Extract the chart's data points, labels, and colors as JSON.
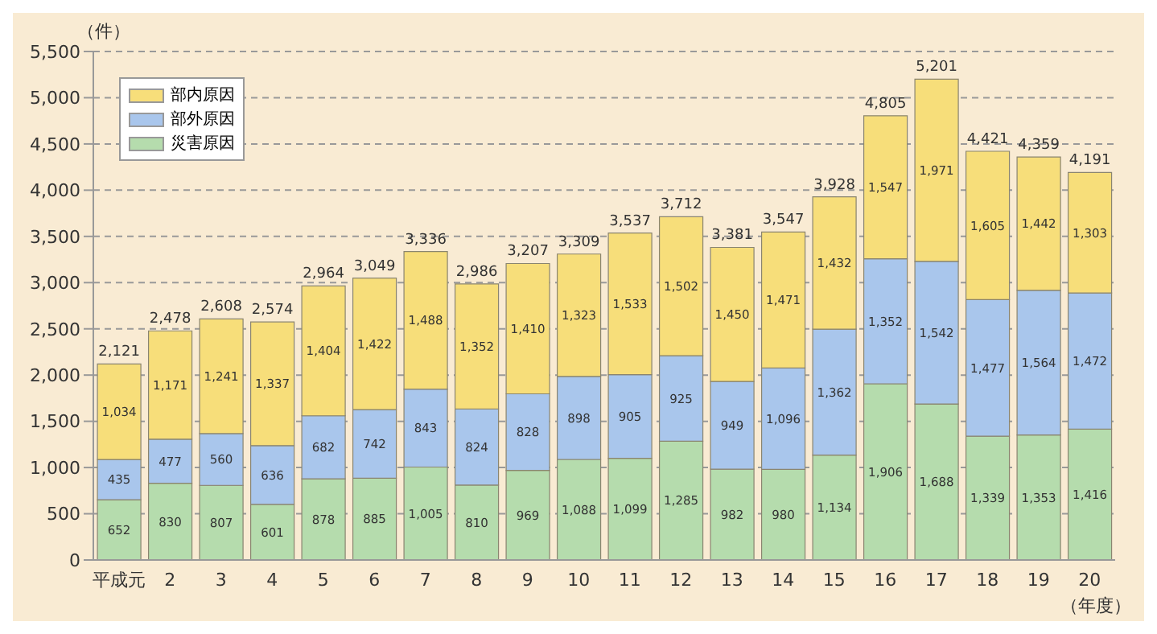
{
  "chart_data": {
    "type": "bar",
    "stacked": true,
    "ylabel": "（件）",
    "xlabel": "（年度）",
    "categories": [
      "平成元",
      "2",
      "3",
      "4",
      "5",
      "6",
      "7",
      "8",
      "9",
      "10",
      "11",
      "12",
      "13",
      "14",
      "15",
      "16",
      "17",
      "18",
      "19",
      "20"
    ],
    "series": [
      {
        "name": "災害原因",
        "color": "#b5dcad",
        "values": [
          652,
          830,
          807,
          601,
          878,
          885,
          1005,
          810,
          969,
          1088,
          1099,
          1285,
          982,
          980,
          1134,
          1906,
          1688,
          1339,
          1353,
          1416
        ],
        "value_labels": [
          "652",
          "830",
          "807",
          "601",
          "878",
          "885",
          "1,005",
          "810",
          "969",
          "1,088",
          "1,099",
          "1,285",
          "982",
          "980",
          "1,134",
          "1,906",
          "1,688",
          "1,339",
          "1,353",
          "1,416"
        ]
      },
      {
        "name": "部外原因",
        "color": "#a9c6ec",
        "values": [
          435,
          477,
          560,
          636,
          682,
          742,
          843,
          824,
          828,
          898,
          905,
          925,
          949,
          1096,
          1362,
          1352,
          1542,
          1477,
          1564,
          1472
        ],
        "value_labels": [
          "435",
          "477",
          "560",
          "636",
          "682",
          "742",
          "843",
          "824",
          "828",
          "898",
          "905",
          "925",
          "949",
          "1,096",
          "1,362",
          "1,352",
          "1,542",
          "1,477",
          "1,564",
          "1,472"
        ]
      },
      {
        "name": "部内原因",
        "color": "#f7de7a",
        "values": [
          1034,
          1171,
          1241,
          1337,
          1404,
          1422,
          1488,
          1352,
          1410,
          1323,
          1533,
          1502,
          1450,
          1471,
          1432,
          1547,
          1971,
          1605,
          1442,
          1303
        ],
        "value_labels": [
          "1,034",
          "1,171",
          "1,241",
          "1,337",
          "1,404",
          "1,422",
          "1,488",
          "1,352",
          "1,410",
          "1,323",
          "1,533",
          "1,502",
          "1,450",
          "1,471",
          "1,432",
          "1,547",
          "1,971",
          "1,605",
          "1,442",
          "1,303"
        ]
      }
    ],
    "totals": [
      "2,121",
      "2,478",
      "2,608",
      "2,574",
      "2,964",
      "3,049",
      "3,336",
      "2,986",
      "3,207",
      "3,309",
      "3,537",
      "3,712",
      "3,381",
      "3,547",
      "3,928",
      "4,805",
      "5,201",
      "4,421",
      "4,359",
      "4,191"
    ],
    "ylim": [
      0,
      5500
    ],
    "yticks": [
      0,
      500,
      {
        "value": 1000,
        "label": "1,000"
      },
      {
        "value": 1500,
        "label": "1,500"
      },
      {
        "value": 2000,
        "label": "2,000"
      },
      {
        "value": 2500,
        "label": "2,500"
      },
      {
        "value": 3000,
        "label": "3,000"
      },
      {
        "value": 3500,
        "label": "3,500"
      },
      {
        "value": 4000,
        "label": "4,000"
      },
      {
        "value": 4500,
        "label": "4,500"
      },
      {
        "value": 5000,
        "label": "5,000"
      },
      {
        "value": 5500,
        "label": "5,500"
      }
    ],
    "grid": "y",
    "legend": "top left"
  }
}
